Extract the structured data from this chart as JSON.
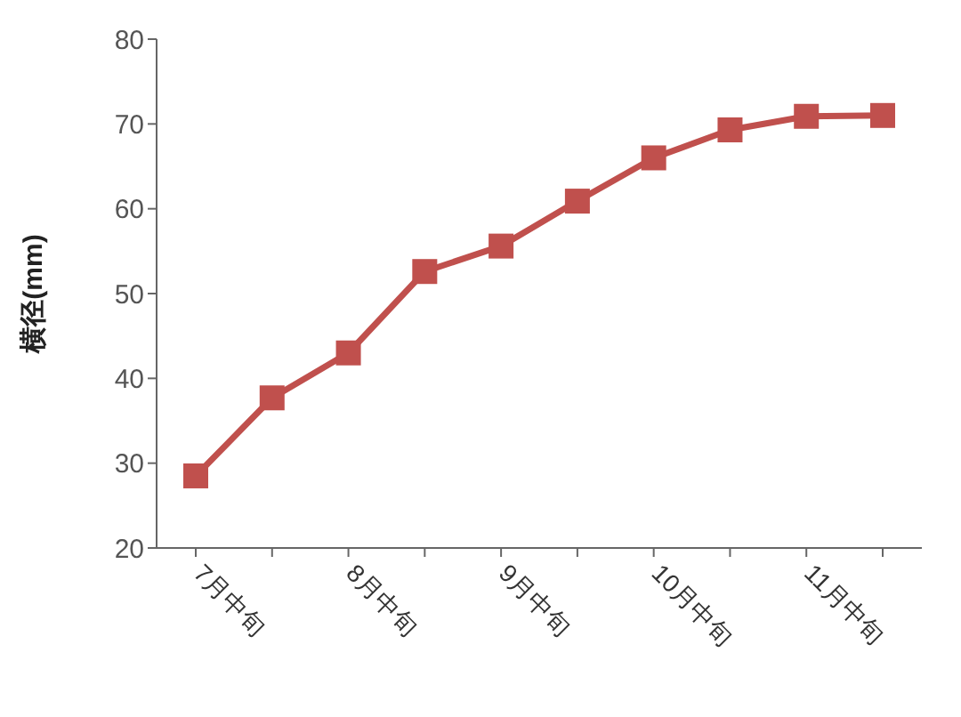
{
  "chart_data": {
    "type": "line",
    "ylabel": "横径(mm)",
    "categories": [
      "7月中旬",
      null,
      "8月中旬",
      null,
      "9月中旬",
      null,
      "10月中旬",
      null,
      "11月中旬",
      null
    ],
    "series": [
      {
        "color": "#c0504d",
        "values": [
          28.5,
          37.7,
          43,
          52.6,
          55.6,
          60.9,
          66,
          69.3,
          70.9,
          71
        ]
      }
    ],
    "ylim": [
      20,
      80
    ],
    "yticks": [
      20,
      30,
      40,
      50,
      60,
      70,
      80
    ],
    "grid": false,
    "legend": false,
    "marker": "square",
    "line_style": "solid"
  }
}
